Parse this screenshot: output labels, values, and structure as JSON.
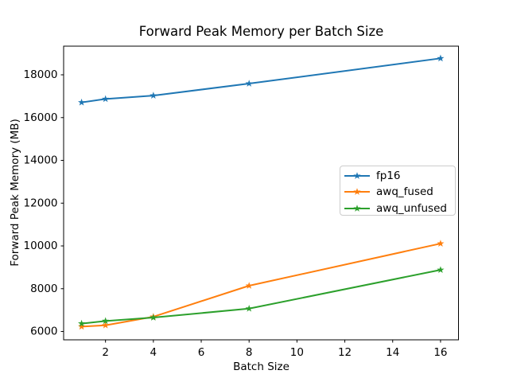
{
  "chart_data": {
    "type": "line",
    "title": "Forward Peak Memory per Batch Size",
    "xlabel": "Batch Size",
    "ylabel": "Forward Peak Memory (MB)",
    "x": [
      1,
      2,
      4,
      8,
      16
    ],
    "series": [
      {
        "name": "fp16",
        "color": "#1f77b4",
        "values": [
          16710,
          16870,
          17030,
          17590,
          18770
        ]
      },
      {
        "name": "awq_fused",
        "color": "#ff7f0e",
        "values": [
          6230,
          6290,
          6690,
          8140,
          10110
        ]
      },
      {
        "name": "awq_unfused",
        "color": "#2ca02c",
        "values": [
          6370,
          6490,
          6650,
          7070,
          8880
        ]
      }
    ],
    "xticks": [
      2,
      4,
      6,
      8,
      10,
      12,
      14,
      16
    ],
    "yticks": [
      6000,
      8000,
      10000,
      12000,
      14000,
      16000,
      18000
    ],
    "xlim": [
      0.25,
      16.75
    ],
    "ylim": [
      5610,
      19340
    ],
    "marker": "star",
    "grid": false,
    "legend": {
      "position": "center right",
      "entries": [
        "fp16",
        "awq_fused",
        "awq_unfused"
      ]
    },
    "spine_color": "#000000",
    "background": "#ffffff"
  }
}
